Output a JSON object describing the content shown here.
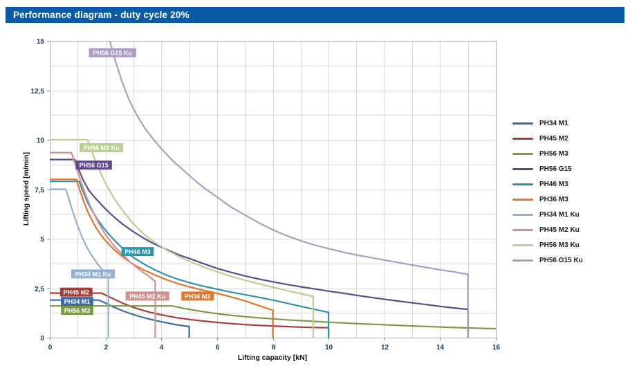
{
  "header": {
    "title": "Performance diagram - duty cycle 20%"
  },
  "colors": {
    "header_bg": "#0B5AA7",
    "grid": "#D9D9D9",
    "frame": "#ABABAB",
    "tick": "#7F7F7F",
    "tick_label": "#17365D",
    "axis_title": "#111111",
    "curve_label_text": "#FFFFFF"
  },
  "chart_data": {
    "type": "line",
    "title": "Performance diagram - duty cycle 20%",
    "xlabel": "Lifting capacity [kN]",
    "ylabel": "Lifting speed [m/min]",
    "xlim": [
      0,
      16
    ],
    "ylim": [
      0,
      15
    ],
    "x_minor_step": 1,
    "y_minor_step": 1.25,
    "grid": true,
    "legend_position": "right",
    "x_ticks": [
      {
        "v": 0,
        "label": "0"
      },
      {
        "v": 2,
        "label": "2"
      },
      {
        "v": 4,
        "label": "4"
      },
      {
        "v": 6,
        "label": "6"
      },
      {
        "v": 8,
        "label": "8"
      },
      {
        "v": 10,
        "label": "10"
      },
      {
        "v": 12,
        "label": "12"
      },
      {
        "v": 14,
        "label": "14"
      },
      {
        "v": 16,
        "label": "16"
      }
    ],
    "y_ticks": [
      {
        "v": 0,
        "label": "0"
      },
      {
        "v": 2.5,
        "label": "2,5"
      },
      {
        "v": 5,
        "label": "5"
      },
      {
        "v": 7.5,
        "label": "7,5"
      },
      {
        "v": 10,
        "label": "10"
      },
      {
        "v": 12.5,
        "label": "12,5"
      },
      {
        "v": 15,
        "label": "15"
      }
    ],
    "series": [
      {
        "name": "PH34 M1",
        "color": "#3A6BA5",
        "points": [
          [
            0,
            1.9
          ],
          [
            1.75,
            1.9
          ],
          [
            1.95,
            1.78
          ],
          [
            2.2,
            1.6
          ],
          [
            2.5,
            1.42
          ],
          [
            2.8,
            1.26
          ],
          [
            3.1,
            1.12
          ],
          [
            3.5,
            0.96
          ],
          [
            4,
            0.8
          ],
          [
            4.5,
            0.66
          ],
          [
            5,
            0.56
          ],
          [
            5,
            0
          ]
        ]
      },
      {
        "name": "PH45 M2",
        "color": "#A63F3C",
        "points": [
          [
            0,
            2.25
          ],
          [
            1.85,
            2.25
          ],
          [
            2.05,
            2.12
          ],
          [
            2.3,
            1.95
          ],
          [
            2.6,
            1.75
          ],
          [
            2.9,
            1.58
          ],
          [
            3.2,
            1.44
          ],
          [
            3.6,
            1.28
          ],
          [
            4,
            1.15
          ],
          [
            4.5,
            1.02
          ],
          [
            5,
            0.92
          ],
          [
            5.5,
            0.84
          ],
          [
            6,
            0.77
          ],
          [
            6.5,
            0.71
          ],
          [
            7,
            0.66
          ],
          [
            7.5,
            0.62
          ],
          [
            8,
            0.59
          ],
          [
            8.5,
            0.56
          ],
          [
            9,
            0.53
          ],
          [
            9.5,
            0.51
          ],
          [
            10,
            0.5
          ],
          [
            10,
            0
          ]
        ]
      },
      {
        "name": "PH56 M3",
        "color": "#7E9A44",
        "points": [
          [
            0,
            1.6
          ],
          [
            4.4,
            1.6
          ],
          [
            4.8,
            1.48
          ],
          [
            5.2,
            1.38
          ],
          [
            5.6,
            1.29
          ],
          [
            6,
            1.21
          ],
          [
            6.5,
            1.13
          ],
          [
            7,
            1.06
          ],
          [
            7.5,
            1.0
          ],
          [
            8,
            0.95
          ],
          [
            8.5,
            0.9
          ],
          [
            9,
            0.86
          ],
          [
            9.5,
            0.82
          ],
          [
            10,
            0.78
          ],
          [
            11,
            0.71
          ],
          [
            12,
            0.65
          ],
          [
            13,
            0.59
          ],
          [
            14,
            0.54
          ],
          [
            15,
            0.49
          ],
          [
            16,
            0.45
          ]
        ]
      },
      {
        "name": "PH56 G15",
        "color": "#5D4A8E",
        "points": [
          [
            0,
            9
          ],
          [
            0.9,
            9
          ],
          [
            1.05,
            8.45
          ],
          [
            1.2,
            7.95
          ],
          [
            1.4,
            7.45
          ],
          [
            1.6,
            7.1
          ],
          [
            1.8,
            6.8
          ],
          [
            2,
            6.5
          ],
          [
            2.3,
            6.1
          ],
          [
            2.6,
            5.75
          ],
          [
            3,
            5.35
          ],
          [
            3.4,
            5.0
          ],
          [
            3.8,
            4.7
          ],
          [
            4.2,
            4.45
          ],
          [
            4.6,
            4.2
          ],
          [
            5,
            4.0
          ],
          [
            5.5,
            3.75
          ],
          [
            6,
            3.5
          ],
          [
            6.5,
            3.3
          ],
          [
            7,
            3.12
          ],
          [
            7.5,
            2.96
          ],
          [
            8,
            2.82
          ],
          [
            8.5,
            2.69
          ],
          [
            9,
            2.57
          ],
          [
            9.5,
            2.46
          ],
          [
            10,
            2.35
          ],
          [
            10.5,
            2.25
          ],
          [
            11,
            2.14
          ],
          [
            11.5,
            2.04
          ],
          [
            12,
            1.94
          ],
          [
            12.5,
            1.85
          ],
          [
            13,
            1.76
          ],
          [
            13.5,
            1.67
          ],
          [
            14,
            1.58
          ],
          [
            14.5,
            1.5
          ],
          [
            15,
            1.43
          ],
          [
            15,
            0
          ]
        ]
      },
      {
        "name": "PH46 M3",
        "color": "#2E93B0",
        "points": [
          [
            0,
            7.9
          ],
          [
            1.05,
            7.9
          ],
          [
            1.2,
            7.35
          ],
          [
            1.35,
            6.85
          ],
          [
            1.5,
            6.45
          ],
          [
            1.7,
            6.0
          ],
          [
            1.9,
            5.6
          ],
          [
            2.1,
            5.25
          ],
          [
            2.4,
            4.8
          ],
          [
            2.7,
            4.4
          ],
          [
            3,
            4.05
          ],
          [
            3.4,
            3.7
          ],
          [
            3.8,
            3.4
          ],
          [
            4.2,
            3.15
          ],
          [
            4.6,
            2.95
          ],
          [
            5,
            2.78
          ],
          [
            5.5,
            2.6
          ],
          [
            6,
            2.45
          ],
          [
            6.5,
            2.3
          ],
          [
            7,
            2.17
          ],
          [
            7.5,
            2.04
          ],
          [
            8,
            1.9
          ],
          [
            8.5,
            1.74
          ],
          [
            9,
            1.58
          ],
          [
            9.5,
            1.43
          ],
          [
            10,
            1.28
          ],
          [
            10,
            0
          ]
        ]
      },
      {
        "name": "PH36 M3",
        "color": "#E2752A",
        "points": [
          [
            0,
            8
          ],
          [
            0.95,
            8
          ],
          [
            1.1,
            7.35
          ],
          [
            1.25,
            6.75
          ],
          [
            1.4,
            6.25
          ],
          [
            1.6,
            5.7
          ],
          [
            1.8,
            5.25
          ],
          [
            2,
            4.9
          ],
          [
            2.3,
            4.45
          ],
          [
            2.6,
            4.1
          ],
          [
            3,
            3.7
          ],
          [
            3.4,
            3.4
          ],
          [
            3.8,
            3.15
          ],
          [
            4.2,
            2.92
          ],
          [
            4.6,
            2.73
          ],
          [
            5,
            2.57
          ],
          [
            5.5,
            2.4
          ],
          [
            6,
            2.24
          ],
          [
            6.5,
            2.06
          ],
          [
            7,
            1.86
          ],
          [
            7.5,
            1.62
          ],
          [
            8,
            1.38
          ],
          [
            8,
            0
          ]
        ]
      },
      {
        "name": "PH34 M1 Ku",
        "color": "#93AFD4",
        "points": [
          [
            0,
            7.5
          ],
          [
            0.57,
            7.5
          ],
          [
            0.7,
            6.95
          ],
          [
            0.85,
            6.25
          ],
          [
            1,
            5.65
          ],
          [
            1.15,
            5.1
          ],
          [
            1.3,
            4.65
          ],
          [
            1.5,
            4.15
          ],
          [
            1.7,
            3.75
          ],
          [
            1.9,
            3.4
          ],
          [
            2.05,
            3.15
          ],
          [
            2.1,
            3.0
          ],
          [
            2.1,
            0
          ]
        ]
      },
      {
        "name": "PH45 M2 Ku",
        "color": "#D4908E",
        "points": [
          [
            0,
            9.35
          ],
          [
            0.78,
            9.35
          ],
          [
            0.95,
            8.6
          ],
          [
            1.1,
            7.95
          ],
          [
            1.3,
            7.15
          ],
          [
            1.5,
            6.5
          ],
          [
            1.75,
            5.8
          ],
          [
            2,
            5.2
          ],
          [
            2.3,
            4.65
          ],
          [
            2.6,
            4.2
          ],
          [
            2.9,
            3.8
          ],
          [
            3.2,
            3.45
          ],
          [
            3.5,
            3.15
          ],
          [
            3.78,
            2.85
          ],
          [
            3.78,
            0
          ]
        ]
      },
      {
        "name": "PH56 M3 Ku",
        "color": "#BACF92",
        "points": [
          [
            0,
            10
          ],
          [
            1.35,
            10
          ],
          [
            1.55,
            9.25
          ],
          [
            1.75,
            8.55
          ],
          [
            2,
            7.8
          ],
          [
            2.3,
            7.05
          ],
          [
            2.6,
            6.45
          ],
          [
            3,
            5.75
          ],
          [
            3.4,
            5.2
          ],
          [
            3.8,
            4.78
          ],
          [
            4.2,
            4.42
          ],
          [
            4.6,
            4.12
          ],
          [
            5,
            3.86
          ],
          [
            5.5,
            3.58
          ],
          [
            6,
            3.33
          ],
          [
            6.5,
            3.1
          ],
          [
            7,
            2.9
          ],
          [
            7.5,
            2.72
          ],
          [
            8,
            2.55
          ],
          [
            8.5,
            2.38
          ],
          [
            9,
            2.22
          ],
          [
            9.45,
            2.08
          ],
          [
            9.45,
            0
          ]
        ]
      },
      {
        "name": "PH56 G15 Ku",
        "color": "#AD9CC9",
        "points": [
          [
            2.15,
            15
          ],
          [
            2.35,
            14.0
          ],
          [
            2.6,
            12.9
          ],
          [
            2.85,
            12.0
          ],
          [
            3.1,
            11.3
          ],
          [
            3.4,
            10.6
          ],
          [
            3.7,
            10.05
          ],
          [
            4,
            9.55
          ],
          [
            4.4,
            8.95
          ],
          [
            4.8,
            8.45
          ],
          [
            5.2,
            7.95
          ],
          [
            5.6,
            7.5
          ],
          [
            6,
            7.1
          ],
          [
            6.5,
            6.6
          ],
          [
            7,
            6.2
          ],
          [
            7.5,
            5.8
          ],
          [
            8,
            5.45
          ],
          [
            8.5,
            5.15
          ],
          [
            9,
            4.9
          ],
          [
            9.5,
            4.68
          ],
          [
            10,
            4.5
          ],
          [
            10.5,
            4.33
          ],
          [
            11,
            4.18
          ],
          [
            11.5,
            4.05
          ],
          [
            12,
            3.92
          ],
          [
            12.5,
            3.8
          ],
          [
            13,
            3.67
          ],
          [
            13.5,
            3.55
          ],
          [
            14,
            3.43
          ],
          [
            14.5,
            3.32
          ],
          [
            15,
            3.2
          ],
          [
            15,
            0
          ]
        ]
      }
    ],
    "curve_labels": [
      {
        "text": "PH56 G15 Ku",
        "x": 2.25,
        "y": 14.4,
        "color": "#AD9CC9"
      },
      {
        "text": "PH56 M3 Ku",
        "x": 1.85,
        "y": 9.6,
        "color": "#BACF92"
      },
      {
        "text": "PH56 G15",
        "x": 1.58,
        "y": 8.72,
        "color": "#5D4A8E"
      },
      {
        "text": "PH46 M3",
        "x": 3.15,
        "y": 4.35,
        "color": "#2E93B0"
      },
      {
        "text": "PH34 M1 Ku",
        "x": 1.55,
        "y": 3.22,
        "color": "#93AFD4"
      },
      {
        "text": "PH45 M2",
        "x": 0.95,
        "y": 2.3,
        "color": "#A63F3C"
      },
      {
        "text": "PH34 M1",
        "x": 0.98,
        "y": 1.83,
        "color": "#3A6BA5"
      },
      {
        "text": "PH56 M3",
        "x": 0.98,
        "y": 1.38,
        "color": "#7E9A44"
      },
      {
        "text": "PH45 M2 Ku",
        "x": 3.5,
        "y": 2.1,
        "color": "#D4908E"
      },
      {
        "text": "PH36 M3",
        "x": 5.3,
        "y": 2.1,
        "color": "#E2752A"
      }
    ]
  }
}
